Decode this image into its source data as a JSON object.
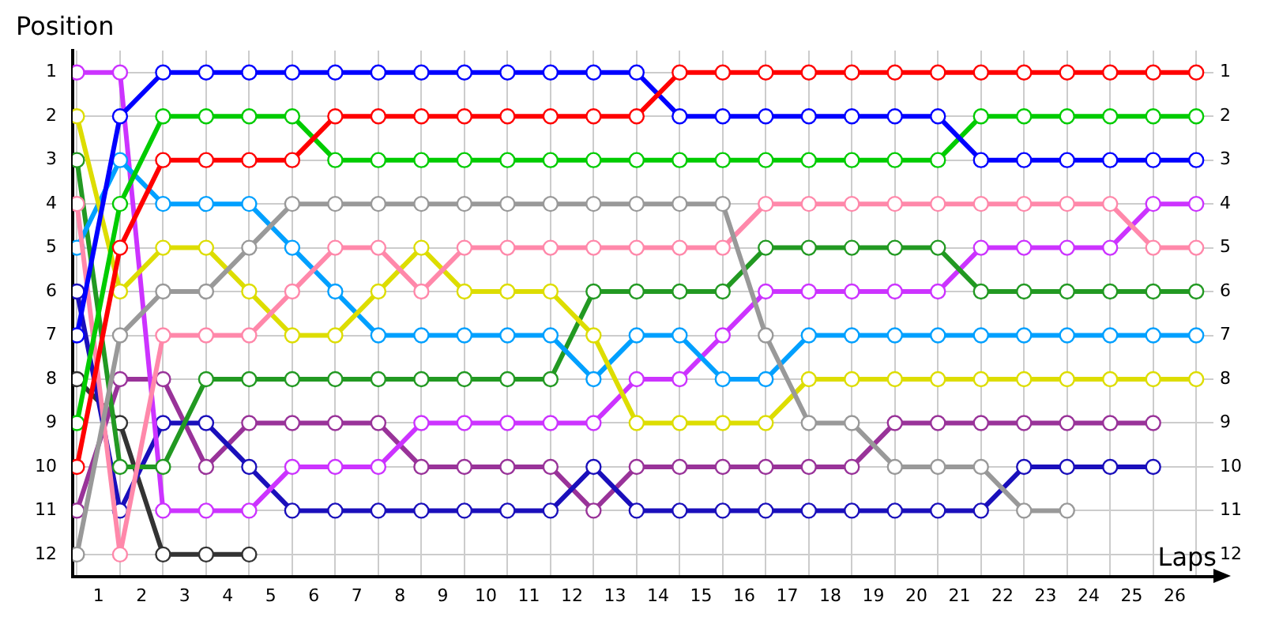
{
  "chart_data": {
    "type": "line",
    "xlabel": "Laps",
    "ylabel": "Position",
    "x": [
      0,
      1,
      2,
      3,
      4,
      5,
      6,
      7,
      8,
      9,
      10,
      11,
      12,
      13,
      14,
      15,
      16,
      17,
      18,
      19,
      20,
      21,
      22,
      23,
      24,
      25,
      26
    ],
    "xlim": [
      -0.1,
      26.4
    ],
    "xticks": [
      {
        "value": 0,
        "label": null
      },
      {
        "value": 0.5,
        "label": "1"
      },
      {
        "value": 1,
        "label": null
      },
      {
        "value": 1.5,
        "label": "2"
      },
      {
        "value": 2,
        "label": null
      },
      {
        "value": 2.5,
        "label": "3"
      },
      {
        "value": 3,
        "label": null
      },
      {
        "value": 3.5,
        "label": "4"
      },
      {
        "value": 4,
        "label": null
      },
      {
        "value": 4.5,
        "label": "5"
      },
      {
        "value": 5,
        "label": null
      },
      {
        "value": 5.5,
        "label": "6"
      },
      {
        "value": 6,
        "label": null
      },
      {
        "value": 6.5,
        "label": "7"
      },
      {
        "value": 7,
        "label": null
      },
      {
        "value": 7.5,
        "label": "8"
      },
      {
        "value": 8,
        "label": null
      },
      {
        "value": 8.5,
        "label": "9"
      },
      {
        "value": 9,
        "label": null
      },
      {
        "value": 9.5,
        "label": "10"
      },
      {
        "value": 10,
        "label": null
      },
      {
        "value": 10.5,
        "label": "11"
      },
      {
        "value": 11,
        "label": null
      },
      {
        "value": 11.5,
        "label": "12"
      },
      {
        "value": 12,
        "label": null
      },
      {
        "value": 12.5,
        "label": "13"
      },
      {
        "value": 13,
        "label": null
      },
      {
        "value": 13.5,
        "label": "14"
      },
      {
        "value": 14,
        "label": null
      },
      {
        "value": 14.5,
        "label": "15"
      },
      {
        "value": 15,
        "label": null
      },
      {
        "value": 15.5,
        "label": "16"
      },
      {
        "value": 16,
        "label": null
      },
      {
        "value": 16.5,
        "label": "17"
      },
      {
        "value": 17,
        "label": null
      },
      {
        "value": 17.5,
        "label": "18"
      },
      {
        "value": 18,
        "label": null
      },
      {
        "value": 18.5,
        "label": "19"
      },
      {
        "value": 19,
        "label": null
      },
      {
        "value": 19.5,
        "label": "20"
      },
      {
        "value": 20,
        "label": null
      },
      {
        "value": 20.5,
        "label": "21"
      },
      {
        "value": 21,
        "label": null
      },
      {
        "value": 21.5,
        "label": "22"
      },
      {
        "value": 22,
        "label": null
      },
      {
        "value": 22.5,
        "label": "23"
      },
      {
        "value": 23,
        "label": null
      },
      {
        "value": 23.5,
        "label": "24"
      },
      {
        "value": 24,
        "label": null
      },
      {
        "value": 24.5,
        "label": "25"
      },
      {
        "value": 25,
        "label": null
      },
      {
        "value": 25.5,
        "label": "26"
      },
      {
        "value": 26,
        "label": null
      }
    ],
    "ylim": [
      12.5,
      0.5
    ],
    "yticks": [
      1,
      2,
      3,
      4,
      5,
      6,
      7,
      8,
      9,
      10,
      11,
      12
    ],
    "y2lim": [
      12.5,
      0.5
    ],
    "y2ticks": [
      1,
      2,
      3,
      4,
      5,
      6,
      7,
      8,
      9,
      10,
      11,
      12
    ],
    "grid": true,
    "legend": false,
    "marker": "circle",
    "line_style": "solid",
    "series": [
      {
        "color": "#ff0000",
        "values": [
          10,
          5,
          3,
          3,
          3,
          3,
          2,
          2,
          2,
          2,
          2,
          2,
          2,
          2,
          1,
          1,
          1,
          1,
          1,
          1,
          1,
          1,
          1,
          1,
          1,
          1,
          1
        ]
      },
      {
        "color": "#0000ff",
        "values": [
          7,
          2,
          1,
          1,
          1,
          1,
          1,
          1,
          1,
          1,
          1,
          1,
          1,
          1,
          2,
          2,
          2,
          2,
          2,
          2,
          2,
          3,
          3,
          3,
          3,
          3,
          3
        ]
      },
      {
        "color": "#00cc00",
        "values": [
          9,
          4,
          2,
          2,
          2,
          2,
          3,
          3,
          3,
          3,
          3,
          3,
          3,
          3,
          3,
          3,
          3,
          3,
          3,
          3,
          3,
          2,
          2,
          2,
          2,
          2,
          2
        ]
      },
      {
        "color": "#999999",
        "values": [
          12,
          7,
          6,
          6,
          5,
          4,
          4,
          4,
          4,
          4,
          4,
          4,
          4,
          4,
          4,
          4,
          7,
          9,
          9,
          10,
          10,
          10,
          11,
          11,
          null,
          null,
          null
        ]
      },
      {
        "color": "#ff88aa",
        "values": [
          4,
          12,
          7,
          7,
          7,
          6,
          5,
          5,
          6,
          5,
          5,
          5,
          5,
          5,
          5,
          5,
          4,
          4,
          4,
          4,
          4,
          4,
          4,
          4,
          4,
          5,
          5
        ]
      },
      {
        "color": "#dddd00",
        "values": [
          2,
          6,
          5,
          5,
          6,
          7,
          7,
          6,
          5,
          6,
          6,
          6,
          7,
          9,
          9,
          9,
          9,
          8,
          8,
          8,
          8,
          8,
          8,
          8,
          8,
          8,
          8
        ]
      },
      {
        "color": "#00a0ff",
        "values": [
          5,
          3,
          4,
          4,
          4,
          5,
          6,
          7,
          7,
          7,
          7,
          7,
          8,
          7,
          7,
          8,
          8,
          7,
          7,
          7,
          7,
          7,
          7,
          7,
          7,
          7,
          7
        ]
      },
      {
        "color": "#229922",
        "values": [
          3,
          10,
          10,
          8,
          8,
          8,
          8,
          8,
          8,
          8,
          8,
          8,
          6,
          6,
          6,
          6,
          5,
          5,
          5,
          5,
          5,
          6,
          6,
          6,
          6,
          6,
          6
        ]
      },
      {
        "color": "#cc33ff",
        "values": [
          1,
          1,
          11,
          11,
          11,
          10,
          10,
          10,
          9,
          9,
          9,
          9,
          9,
          8,
          8,
          7,
          6,
          6,
          6,
          6,
          6,
          5,
          5,
          5,
          5,
          4,
          4
        ]
      },
      {
        "color": "#1a0fbb",
        "values": [
          6,
          11,
          9,
          9,
          10,
          11,
          11,
          11,
          11,
          11,
          11,
          11,
          10,
          11,
          11,
          11,
          11,
          11,
          11,
          11,
          11,
          11,
          10,
          10,
          10,
          10,
          null
        ]
      },
      {
        "color": "#993399",
        "values": [
          11,
          8,
          8,
          10,
          9,
          9,
          9,
          9,
          10,
          10,
          10,
          10,
          11,
          10,
          10,
          10,
          10,
          10,
          10,
          9,
          9,
          9,
          9,
          9,
          9,
          9,
          null
        ]
      },
      {
        "color": "#333333",
        "values": [
          8,
          9,
          12,
          12,
          12,
          null,
          null,
          null,
          null,
          null,
          null,
          null,
          null,
          null,
          null,
          null,
          null,
          null,
          null,
          null,
          null,
          null,
          null,
          null,
          null,
          null,
          null
        ]
      }
    ]
  }
}
